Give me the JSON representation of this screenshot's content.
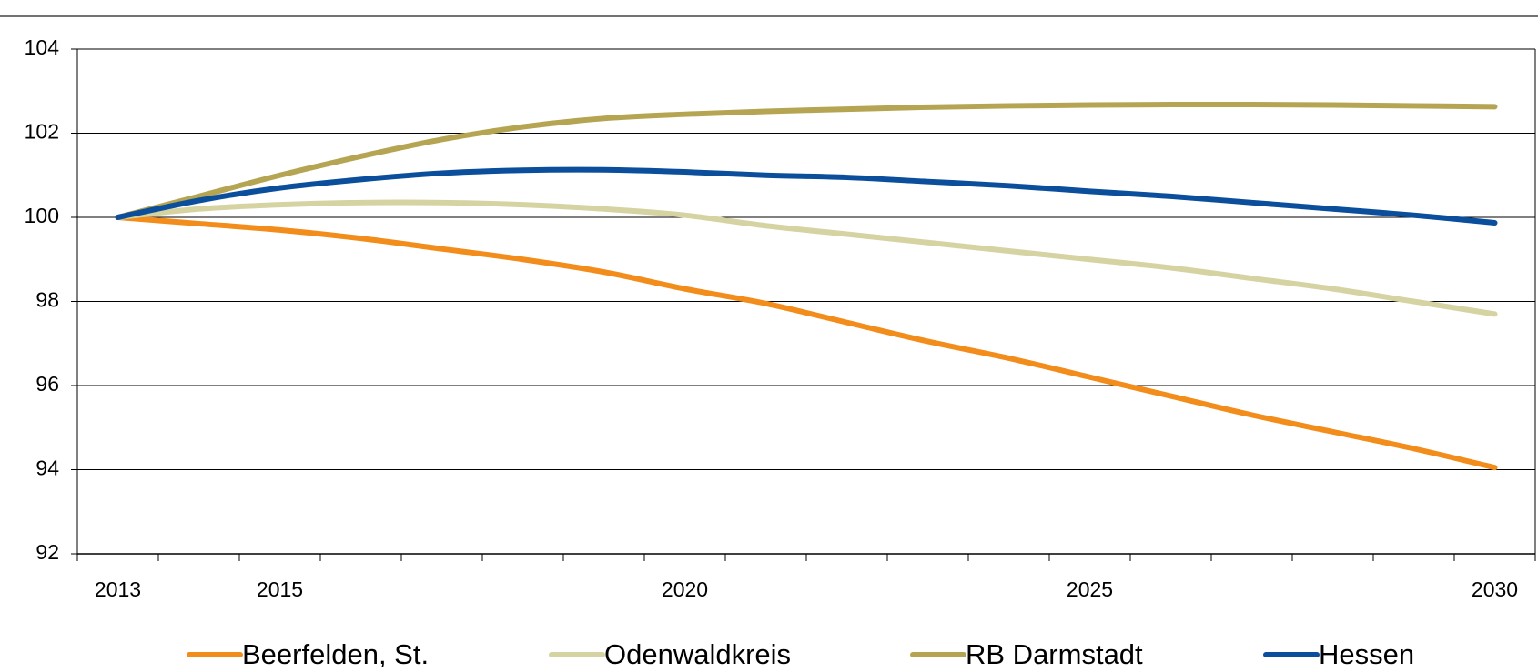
{
  "chart_data": {
    "type": "line",
    "categories": [
      "2013",
      null,
      "2015",
      null,
      null,
      null,
      null,
      "2020",
      null,
      null,
      null,
      null,
      "2025",
      null,
      null,
      null,
      null,
      "2030"
    ],
    "series": [
      {
        "name": "Beerfelden, St.",
        "color": "#f28c1a",
        "values": [
          100,
          99.85,
          99.7,
          99.5,
          99.25,
          99.0,
          98.7,
          98.3,
          97.95,
          97.5,
          97.05,
          96.65,
          96.2,
          95.75,
          95.3,
          94.9,
          94.5,
          94.05
        ]
      },
      {
        "name": "Odenwaldkreis",
        "color": "#d6d3a3",
        "values": [
          100,
          100.2,
          100.3,
          100.35,
          100.35,
          100.3,
          100.2,
          100.05,
          99.8,
          99.6,
          99.4,
          99.2,
          99.0,
          98.8,
          98.55,
          98.3,
          98.0,
          97.7
        ]
      },
      {
        "name": "RB Darmstadt",
        "color": "#b5a552",
        "values": [
          100,
          100.5,
          101.0,
          101.45,
          101.85,
          102.15,
          102.35,
          102.45,
          102.52,
          102.57,
          102.62,
          102.65,
          102.67,
          102.68,
          102.68,
          102.67,
          102.65,
          102.63
        ]
      },
      {
        "name": "Hessen",
        "color": "#0b4f9c",
        "values": [
          100,
          100.4,
          100.7,
          100.9,
          101.05,
          101.12,
          101.13,
          101.08,
          101.0,
          100.95,
          100.85,
          100.75,
          100.62,
          100.5,
          100.35,
          100.2,
          100.05,
          99.87
        ]
      }
    ],
    "ylim": [
      92,
      104
    ],
    "yticks": [
      92,
      94,
      96,
      98,
      100,
      102,
      104
    ],
    "grid": true,
    "legend": "bottom"
  }
}
